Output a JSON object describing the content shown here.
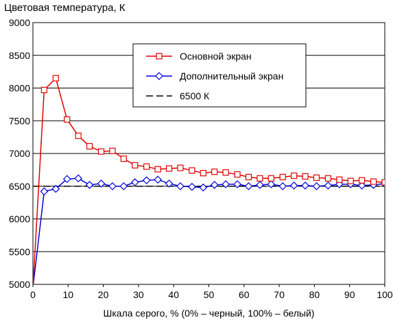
{
  "chart_data": {
    "type": "line",
    "title": "Цветовая температура, К",
    "xlabel": "Шкала серого, % (0% – черный, 100% – белый)",
    "ylabel": "",
    "xlim": [
      0,
      100
    ],
    "ylim": [
      5000,
      9000
    ],
    "x_ticks": [
      "0",
      "10",
      "20",
      "30",
      "40",
      "50",
      "60",
      "70",
      "80",
      "90",
      "100"
    ],
    "y_ticks": [
      "5000",
      "5500",
      "6000",
      "6500",
      "7000",
      "7500",
      "8000",
      "8500",
      "9000"
    ],
    "grid": "horizontal",
    "legend_placement": "top-right",
    "series": [
      {
        "name": "Основной экран",
        "color": "#e00000",
        "marker": "square",
        "x": [
          0,
          3.2,
          6.5,
          9.7,
          12.9,
          16.1,
          19.4,
          22.6,
          25.8,
          29.0,
          32.3,
          35.5,
          38.7,
          41.9,
          45.2,
          48.4,
          51.6,
          54.8,
          58.1,
          61.3,
          64.5,
          67.7,
          71.0,
          74.2,
          77.4,
          80.6,
          83.9,
          87.1,
          90.3,
          93.5,
          96.8,
          100
        ],
        "values": [
          4950,
          7970,
          8150,
          7520,
          7270,
          7110,
          7030,
          7040,
          6920,
          6820,
          6800,
          6760,
          6770,
          6780,
          6740,
          6700,
          6720,
          6710,
          6680,
          6640,
          6620,
          6620,
          6640,
          6660,
          6650,
          6630,
          6620,
          6600,
          6580,
          6590,
          6570,
          6560
        ]
      },
      {
        "name": "Дополнительный экран",
        "color": "#0000e0",
        "marker": "diamond",
        "x": [
          0,
          3.2,
          6.5,
          9.7,
          12.9,
          16.1,
          19.4,
          22.6,
          25.8,
          29.0,
          32.3,
          35.5,
          38.7,
          41.9,
          45.2,
          48.4,
          51.6,
          54.8,
          58.1,
          61.3,
          64.5,
          67.7,
          71.0,
          74.2,
          77.4,
          80.6,
          83.9,
          87.1,
          90.3,
          93.5,
          96.8,
          100
        ],
        "values": [
          4950,
          6420,
          6460,
          6610,
          6620,
          6520,
          6540,
          6500,
          6500,
          6560,
          6590,
          6600,
          6540,
          6500,
          6490,
          6480,
          6520,
          6530,
          6530,
          6500,
          6520,
          6530,
          6500,
          6510,
          6510,
          6500,
          6510,
          6530,
          6530,
          6510,
          6520,
          6540
        ]
      },
      {
        "name": "6500 К",
        "color": "#000000",
        "dashed": true,
        "x": [
          0,
          100
        ],
        "values": [
          6500,
          6500
        ]
      }
    ]
  }
}
